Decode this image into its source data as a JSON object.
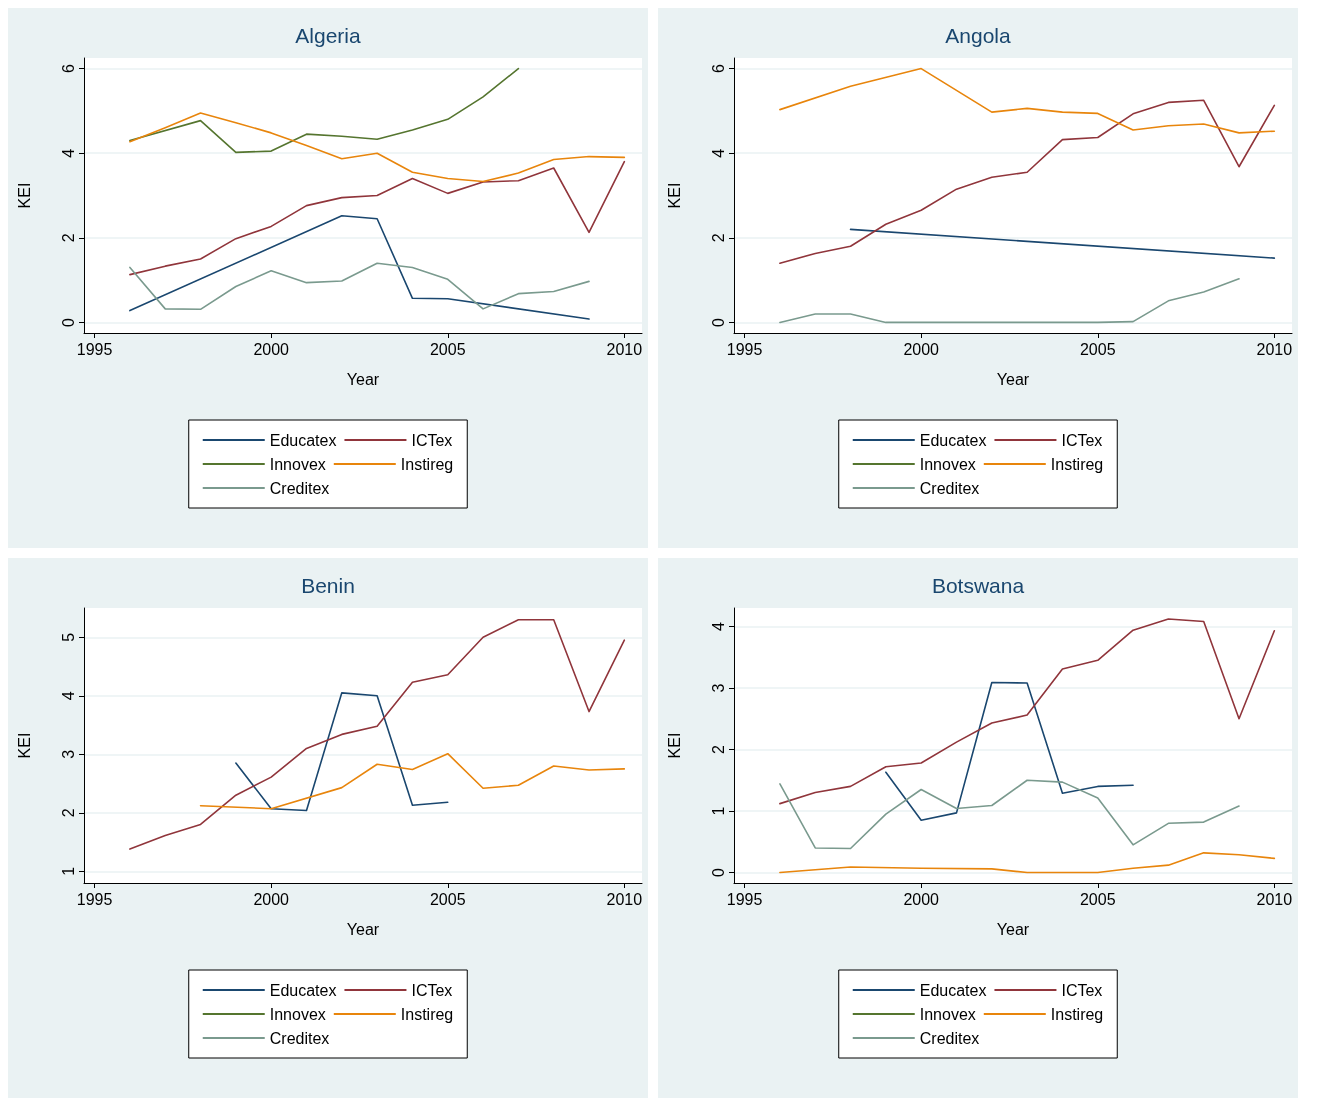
{
  "chart_data": [
    {
      "type": "line",
      "title": "Algeria",
      "xlabel": "Year",
      "ylabel": "KEI",
      "xlim": [
        1994.7,
        2010.5
      ],
      "xticks": [
        1995,
        2000,
        2005,
        2010
      ],
      "ylim": [
        -0.25,
        6.25
      ],
      "yticks": [
        0,
        2,
        4,
        6
      ],
      "grid": "y",
      "legend": "bottom",
      "series": [
        {
          "name": "Educatex",
          "color": "#1a476f",
          "x": [
            1996,
            2002,
            2003,
            2004,
            2005,
            2009
          ],
          "values": [
            0.28,
            2.52,
            2.45,
            0.57,
            0.56,
            0.08
          ]
        },
        {
          "name": "ICTex",
          "color": "#90353b",
          "x": [
            1996,
            1997,
            1998,
            1999,
            2000,
            2001,
            2002,
            2003,
            2004,
            2005,
            2006,
            2007,
            2008,
            2009,
            2010
          ],
          "values": [
            1.13,
            1.33,
            1.5,
            1.98,
            2.27,
            2.76,
            2.95,
            3.0,
            3.4,
            3.05,
            3.32,
            3.35,
            3.65,
            2.13,
            3.8
          ]
        },
        {
          "name": "Innovex",
          "color": "#55752f",
          "x": [
            1996,
            1998,
            1999,
            2000,
            2001,
            2002,
            2003,
            2004,
            2005,
            2006,
            2007
          ],
          "values": [
            4.3,
            4.77,
            4.02,
            4.05,
            4.45,
            4.4,
            4.33,
            4.55,
            4.8,
            5.33,
            6.0
          ]
        },
        {
          "name": "Instireg",
          "color": "#e8850c",
          "x": [
            1996,
            1997,
            1998,
            1999,
            2000,
            2001,
            2002,
            2003,
            2004,
            2005,
            2006,
            2007,
            2008,
            2009,
            2010
          ],
          "values": [
            4.27,
            4.6,
            4.95,
            4.72,
            4.48,
            4.18,
            3.87,
            4.0,
            3.55,
            3.4,
            3.33,
            3.53,
            3.85,
            3.92,
            3.9
          ]
        },
        {
          "name": "Creditex",
          "color": "#7a9a8e",
          "x": [
            1996,
            1997,
            1998,
            1999,
            2000,
            2001,
            2002,
            2003,
            2004,
            2005,
            2006,
            2007,
            2008,
            2009
          ],
          "values": [
            1.3,
            0.32,
            0.31,
            0.85,
            1.22,
            0.94,
            0.98,
            1.4,
            1.3,
            1.02,
            0.32,
            0.68,
            0.73,
            0.97
          ]
        }
      ]
    },
    {
      "type": "line",
      "title": "Angola",
      "xlabel": "Year",
      "ylabel": "KEI",
      "xlim": [
        1994.7,
        2010.5
      ],
      "xticks": [
        1995,
        2000,
        2005,
        2010
      ],
      "ylim": [
        -0.25,
        6.25
      ],
      "yticks": [
        0,
        2,
        4,
        6
      ],
      "grid": "y",
      "legend": "bottom",
      "series": [
        {
          "name": "Educatex",
          "color": "#1a476f",
          "x": [
            1998,
            2010
          ],
          "values": [
            2.2,
            1.52
          ]
        },
        {
          "name": "ICTex",
          "color": "#90353b",
          "x": [
            1996,
            1997,
            1998,
            1999,
            2000,
            2001,
            2002,
            2003,
            2004,
            2005,
            2006,
            2007,
            2008,
            2009,
            2010
          ],
          "values": [
            1.4,
            1.63,
            1.8,
            2.32,
            2.65,
            3.15,
            3.43,
            3.55,
            4.32,
            4.37,
            4.93,
            5.2,
            5.25,
            3.68,
            5.13
          ]
        },
        {
          "name": "Innovex",
          "color": "#55752f"
        },
        {
          "name": "Instireg",
          "color": "#e8850c",
          "x": [
            1996,
            1998,
            2000,
            2002,
            2003,
            2004,
            2005,
            2006,
            2007,
            2008,
            2009,
            2010
          ],
          "values": [
            5.03,
            5.58,
            6.0,
            4.97,
            5.06,
            4.97,
            4.94,
            4.55,
            4.65,
            4.69,
            4.48,
            4.52
          ]
        },
        {
          "name": "Creditex",
          "color": "#7a9a8e",
          "x": [
            1996,
            1997,
            1998,
            1999,
            2000,
            2001,
            2002,
            2003,
            2004,
            2005,
            2006,
            2007,
            2008,
            2009
          ],
          "values": [
            0,
            0.2,
            0.2,
            0,
            0,
            0,
            0,
            0,
            0,
            0,
            0.02,
            0.51,
            0.72,
            1.03
          ]
        }
      ]
    },
    {
      "type": "line",
      "title": "Benin",
      "xlabel": "Year",
      "ylabel": "KEI",
      "xlim": [
        1994.7,
        2010.5
      ],
      "xticks": [
        1995,
        2000,
        2005,
        2010
      ],
      "ylim": [
        0.8,
        5.5
      ],
      "yticks": [
        1,
        2,
        3,
        4,
        5
      ],
      "grid": "y",
      "legend": "bottom",
      "series": [
        {
          "name": "Educatex",
          "color": "#1a476f",
          "x": [
            1999,
            2000,
            2001,
            2002,
            2003,
            2004,
            2005
          ],
          "values": [
            2.85,
            2.07,
            2.04,
            4.05,
            4.0,
            2.13,
            2.18
          ]
        },
        {
          "name": "ICTex",
          "color": "#90353b",
          "x": [
            1996,
            1997,
            1998,
            1999,
            2000,
            2001,
            2002,
            2003,
            2004,
            2005,
            2006,
            2007,
            2008,
            2009,
            2010
          ],
          "values": [
            1.38,
            1.61,
            1.8,
            2.3,
            2.61,
            3.1,
            3.34,
            3.48,
            4.23,
            4.36,
            5.0,
            5.3,
            5.3,
            3.73,
            4.95
          ]
        },
        {
          "name": "Innovex",
          "color": "#55752f"
        },
        {
          "name": "Instireg",
          "color": "#e8850c",
          "x": [
            1998,
            2000,
            2002,
            2003,
            2004,
            2005,
            2006,
            2007,
            2008,
            2009,
            2010
          ],
          "values": [
            2.12,
            2.07,
            2.43,
            2.83,
            2.74,
            3.01,
            2.42,
            2.47,
            2.8,
            2.73,
            2.75
          ]
        },
        {
          "name": "Creditex",
          "color": "#7a9a8e"
        }
      ]
    },
    {
      "type": "line",
      "title": "Botswana",
      "xlabel": "Year",
      "ylabel": "KEI",
      "xlim": [
        1994.7,
        2010.5
      ],
      "xticks": [
        1995,
        2000,
        2005,
        2010
      ],
      "ylim": [
        -0.17,
        4.3
      ],
      "yticks": [
        0,
        1,
        2,
        3,
        4
      ],
      "grid": "y",
      "legend": "bottom",
      "series": [
        {
          "name": "Educatex",
          "color": "#1a476f",
          "x": [
            1999,
            2000,
            2001,
            2002,
            2003,
            2004,
            2005,
            2006
          ],
          "values": [
            1.63,
            0.85,
            0.97,
            3.09,
            3.08,
            1.29,
            1.4,
            1.42
          ]
        },
        {
          "name": "ICTex",
          "color": "#90353b",
          "x": [
            1996,
            1997,
            1998,
            1999,
            2000,
            2001,
            2002,
            2003,
            2004,
            2005,
            2006,
            2007,
            2008,
            2009,
            2010
          ],
          "values": [
            1.12,
            1.3,
            1.4,
            1.72,
            1.78,
            2.12,
            2.43,
            2.56,
            3.31,
            3.45,
            3.94,
            4.12,
            4.08,
            2.5,
            3.93
          ]
        },
        {
          "name": "Innovex",
          "color": "#55752f"
        },
        {
          "name": "Instireg",
          "color": "#e8850c",
          "x": [
            1996,
            1998,
            2000,
            2002,
            2003,
            2004,
            2005,
            2006,
            2007,
            2008,
            2009,
            2010
          ],
          "values": [
            0,
            0.09,
            0.07,
            0.06,
            0,
            0,
            0,
            0.07,
            0.12,
            0.32,
            0.29,
            0.23
          ]
        },
        {
          "name": "Creditex",
          "color": "#7a9a8e",
          "x": [
            1996,
            1997,
            1998,
            1999,
            2000,
            2001,
            2002,
            2003,
            2004,
            2005,
            2006,
            2007,
            2008,
            2009
          ],
          "values": [
            1.44,
            0.4,
            0.39,
            0.95,
            1.35,
            1.04,
            1.09,
            1.5,
            1.47,
            1.21,
            0.45,
            0.8,
            0.82,
            1.08
          ]
        }
      ]
    }
  ]
}
